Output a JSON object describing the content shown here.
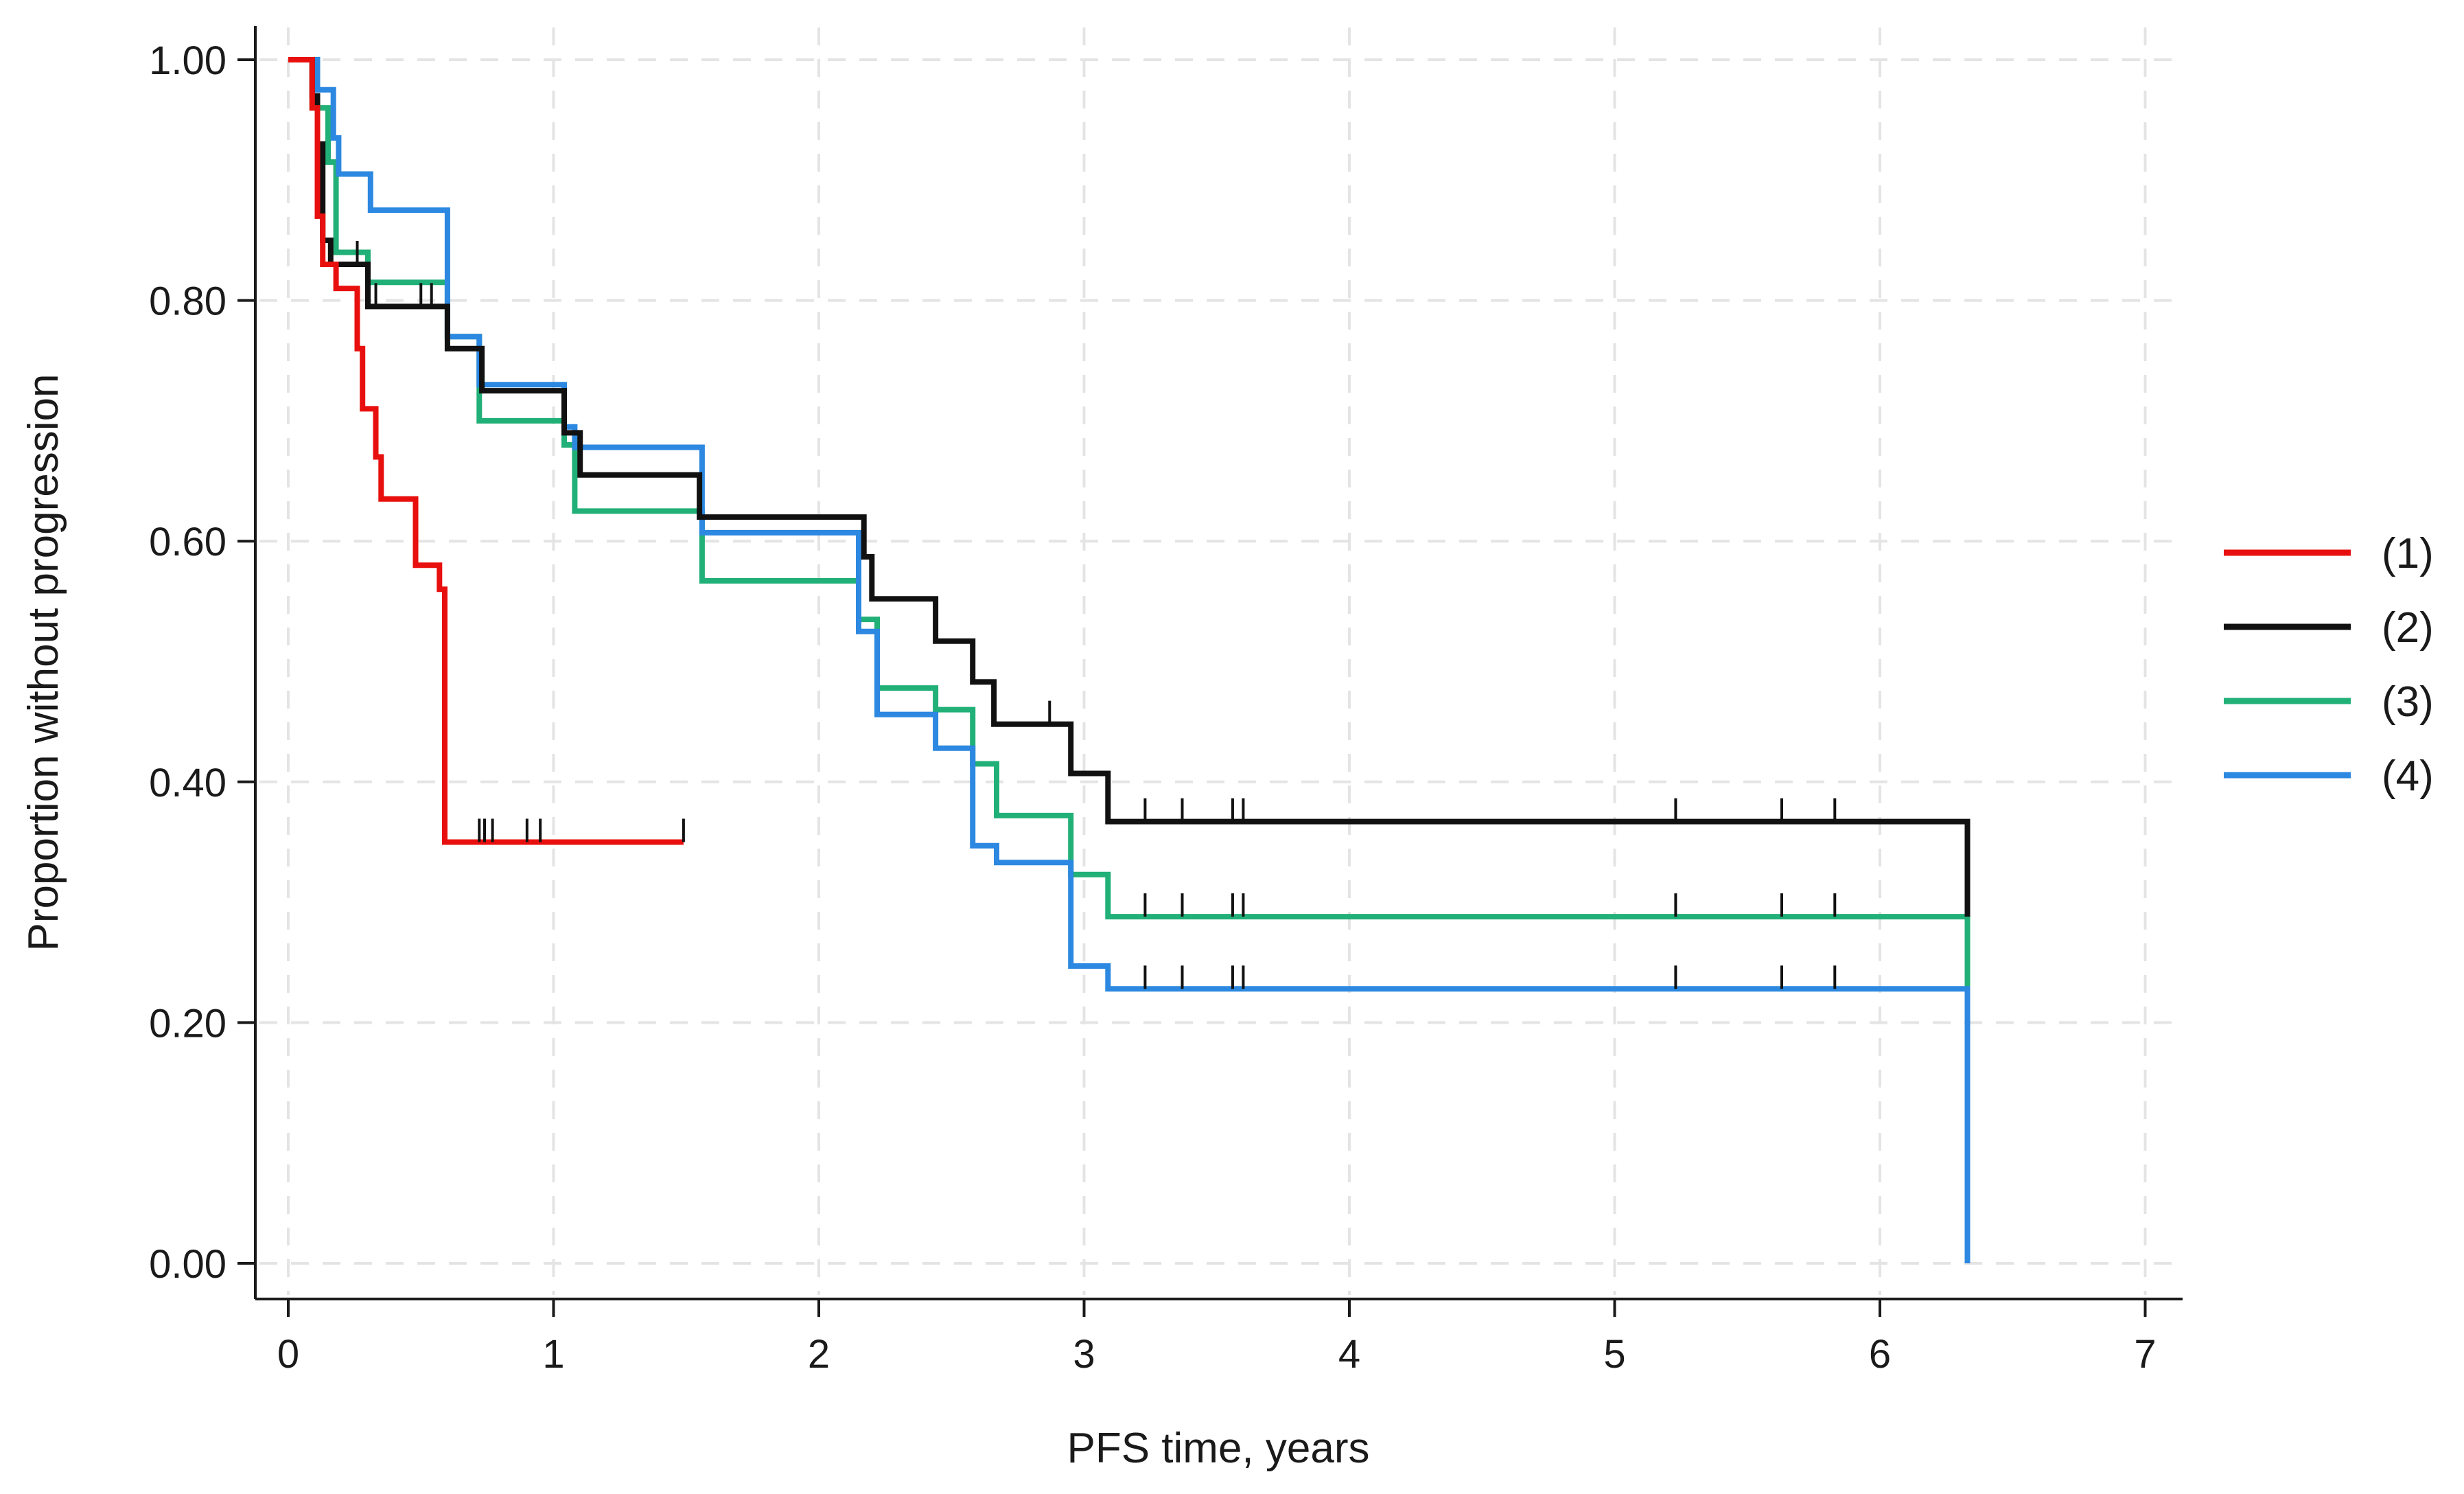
{
  "chart_data": {
    "type": "line",
    "subtype": "kaplan-meier step curves",
    "title": "",
    "xlabel": "PFS time, years",
    "ylabel": "Proportion without progression",
    "xlim": [
      0,
      7
    ],
    "ylim": [
      0,
      1
    ],
    "x_ticks": [
      0,
      1,
      2,
      3,
      4,
      5,
      6,
      7
    ],
    "x_tick_labels": [
      "0",
      "1",
      "2",
      "3",
      "4",
      "5",
      "6",
      "7"
    ],
    "y_ticks": [
      0,
      0.2,
      0.4,
      0.6,
      0.8,
      1.0
    ],
    "y_tick_labels": [
      "0.00",
      "0.20",
      "0.40",
      "0.60",
      "0.80",
      "1.00"
    ],
    "grid": true,
    "legend_position": "right",
    "series": [
      {
        "name": "(1)",
        "color": "#e8100e",
        "points": [
          [
            0,
            1.0
          ],
          [
            0.09,
            1.0
          ],
          [
            0.09,
            0.96
          ],
          [
            0.11,
            0.96
          ],
          [
            0.11,
            0.87
          ],
          [
            0.13,
            0.87
          ],
          [
            0.13,
            0.83
          ],
          [
            0.18,
            0.83
          ],
          [
            0.18,
            0.81
          ],
          [
            0.26,
            0.81
          ],
          [
            0.26,
            0.76
          ],
          [
            0.28,
            0.76
          ],
          [
            0.28,
            0.71
          ],
          [
            0.33,
            0.71
          ],
          [
            0.33,
            0.67
          ],
          [
            0.35,
            0.67
          ],
          [
            0.35,
            0.635
          ],
          [
            0.48,
            0.635
          ],
          [
            0.48,
            0.58
          ],
          [
            0.57,
            0.58
          ],
          [
            0.57,
            0.56
          ],
          [
            0.59,
            0.56
          ],
          [
            0.59,
            0.35
          ],
          [
            1.49,
            0.35
          ]
        ],
        "censor_times": [
          0.72,
          0.74,
          0.77,
          0.9,
          0.95,
          1.49
        ]
      },
      {
        "name": "(2)",
        "color": "#111111",
        "points": [
          [
            0,
            1.0
          ],
          [
            0.09,
            1.0
          ],
          [
            0.09,
            0.97
          ],
          [
            0.11,
            0.97
          ],
          [
            0.11,
            0.93
          ],
          [
            0.13,
            0.93
          ],
          [
            0.13,
            0.85
          ],
          [
            0.16,
            0.85
          ],
          [
            0.16,
            0.83
          ],
          [
            0.3,
            0.83
          ],
          [
            0.3,
            0.795
          ],
          [
            0.6,
            0.795
          ],
          [
            0.6,
            0.76
          ],
          [
            0.73,
            0.76
          ],
          [
            0.73,
            0.725
          ],
          [
            1.04,
            0.725
          ],
          [
            1.04,
            0.69
          ],
          [
            1.1,
            0.69
          ],
          [
            1.1,
            0.655
          ],
          [
            1.55,
            0.655
          ],
          [
            1.55,
            0.62
          ],
          [
            2.17,
            0.62
          ],
          [
            2.17,
            0.587
          ],
          [
            2.2,
            0.587
          ],
          [
            2.2,
            0.552
          ],
          [
            2.44,
            0.552
          ],
          [
            2.44,
            0.517
          ],
          [
            2.58,
            0.517
          ],
          [
            2.58,
            0.483
          ],
          [
            2.66,
            0.483
          ],
          [
            2.66,
            0.448
          ],
          [
            2.95,
            0.448
          ],
          [
            2.95,
            0.407
          ],
          [
            3.09,
            0.407
          ],
          [
            3.09,
            0.367
          ],
          [
            6.33,
            0.367
          ],
          [
            6.33,
            0.288
          ]
        ],
        "censor_times": [
          0.26,
          0.33,
          0.5,
          0.54,
          2.87,
          3.23,
          3.37,
          3.56,
          3.6,
          5.23,
          5.63,
          5.83
        ]
      },
      {
        "name": "(3)",
        "color": "#21b077",
        "points": [
          [
            0,
            1.0
          ],
          [
            0.09,
            1.0
          ],
          [
            0.09,
            0.96
          ],
          [
            0.15,
            0.96
          ],
          [
            0.15,
            0.915
          ],
          [
            0.18,
            0.915
          ],
          [
            0.18,
            0.84
          ],
          [
            0.3,
            0.84
          ],
          [
            0.3,
            0.815
          ],
          [
            0.6,
            0.815
          ],
          [
            0.6,
            0.77
          ],
          [
            0.72,
            0.77
          ],
          [
            0.72,
            0.7
          ],
          [
            1.04,
            0.7
          ],
          [
            1.04,
            0.68
          ],
          [
            1.08,
            0.68
          ],
          [
            1.08,
            0.625
          ],
          [
            1.56,
            0.625
          ],
          [
            1.56,
            0.567
          ],
          [
            2.15,
            0.567
          ],
          [
            2.15,
            0.535
          ],
          [
            2.22,
            0.535
          ],
          [
            2.22,
            0.478
          ],
          [
            2.44,
            0.478
          ],
          [
            2.44,
            0.46
          ],
          [
            2.58,
            0.46
          ],
          [
            2.58,
            0.415
          ],
          [
            2.67,
            0.415
          ],
          [
            2.67,
            0.372
          ],
          [
            2.95,
            0.372
          ],
          [
            2.95,
            0.323
          ],
          [
            3.09,
            0.323
          ],
          [
            3.09,
            0.288
          ],
          [
            6.33,
            0.288
          ],
          [
            6.33,
            0.23
          ]
        ],
        "censor_times": [
          3.23,
          3.37,
          3.56,
          3.6,
          5.23,
          5.63,
          5.83
        ]
      },
      {
        "name": "(4)",
        "color": "#2c88e0",
        "points": [
          [
            0,
            1.0
          ],
          [
            0.11,
            1.0
          ],
          [
            0.11,
            0.975
          ],
          [
            0.17,
            0.975
          ],
          [
            0.17,
            0.935
          ],
          [
            0.19,
            0.935
          ],
          [
            0.19,
            0.905
          ],
          [
            0.31,
            0.905
          ],
          [
            0.31,
            0.875
          ],
          [
            0.6,
            0.875
          ],
          [
            0.6,
            0.77
          ],
          [
            0.72,
            0.77
          ],
          [
            0.72,
            0.73
          ],
          [
            1.04,
            0.73
          ],
          [
            1.04,
            0.695
          ],
          [
            1.08,
            0.695
          ],
          [
            1.08,
            0.678
          ],
          [
            1.56,
            0.678
          ],
          [
            1.56,
            0.607
          ],
          [
            2.15,
            0.607
          ],
          [
            2.15,
            0.525
          ],
          [
            2.22,
            0.525
          ],
          [
            2.22,
            0.456
          ],
          [
            2.44,
            0.456
          ],
          [
            2.44,
            0.428
          ],
          [
            2.58,
            0.428
          ],
          [
            2.58,
            0.347
          ],
          [
            2.67,
            0.347
          ],
          [
            2.67,
            0.333
          ],
          [
            2.95,
            0.333
          ],
          [
            2.95,
            0.247
          ],
          [
            3.09,
            0.247
          ],
          [
            3.09,
            0.228
          ],
          [
            6.33,
            0.228
          ],
          [
            6.33,
            0.0
          ]
        ],
        "censor_times": [
          3.23,
          3.37,
          3.56,
          3.6,
          5.23,
          5.63,
          5.83
        ]
      }
    ]
  }
}
